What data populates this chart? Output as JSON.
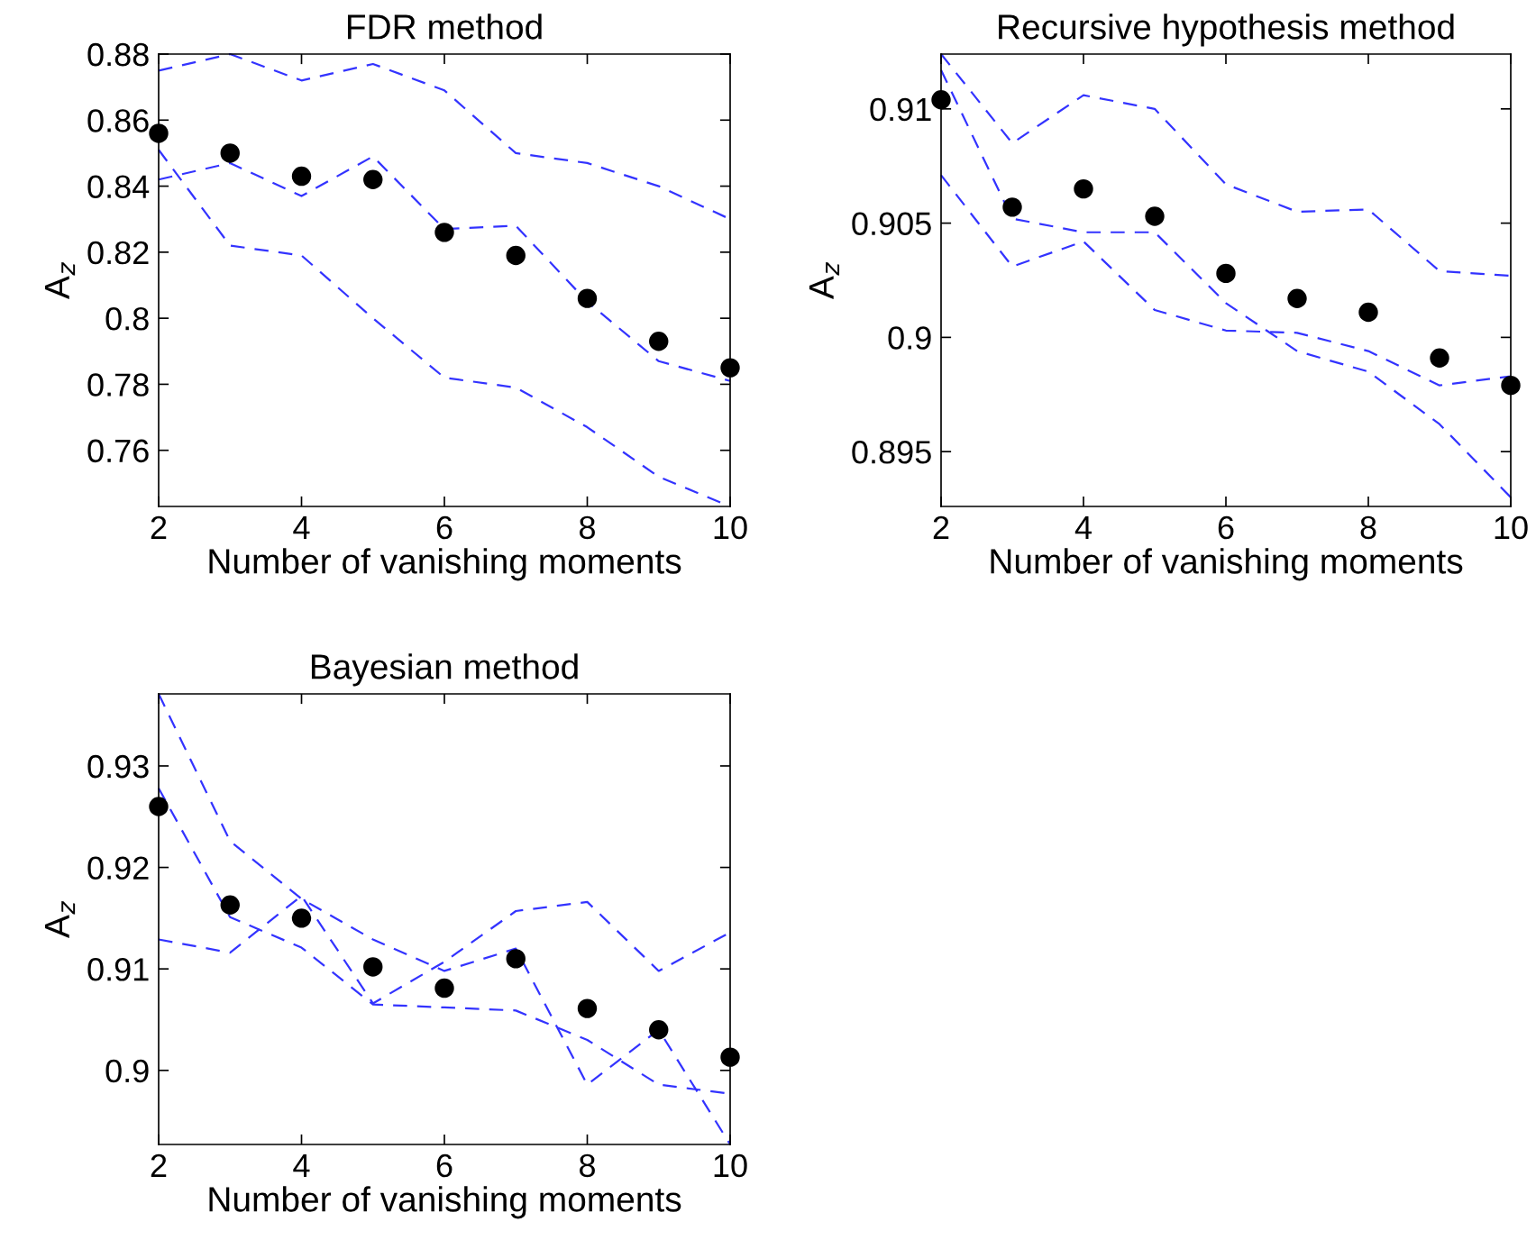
{
  "chart_data": [
    {
      "type": "line",
      "title": "FDR method",
      "xlabel": "Number of vanishing moments",
      "ylabel": "A$_{z}$",
      "x": [
        2,
        3,
        4,
        5,
        6,
        7,
        8,
        9,
        10
      ],
      "xlim": [
        2,
        10
      ],
      "xticks": [
        2,
        4,
        6,
        8,
        10
      ],
      "ylim": [
        0.743,
        0.88
      ],
      "yticks": [
        0.76,
        0.78,
        0.8,
        0.82,
        0.84,
        0.86,
        0.88
      ],
      "grid": false,
      "legend": false,
      "series": [
        {
          "color": "#3333ff",
          "line_style": "dashed",
          "marker": "none",
          "values": [
            0.875,
            0.88,
            0.872,
            0.877,
            0.869,
            0.85,
            0.847,
            0.84,
            0.83
          ]
        },
        {
          "color": "#3333ff",
          "line_style": "dashed",
          "marker": "none",
          "values": [
            0.842,
            0.847,
            0.837,
            0.849,
            0.827,
            0.828,
            0.805,
            0.787,
            0.781
          ]
        },
        {
          "color": "#3333ff",
          "line_style": "dashed",
          "marker": "none",
          "values": [
            0.851,
            0.822,
            0.819,
            0.8,
            0.782,
            0.779,
            0.767,
            0.752,
            0.743
          ]
        },
        {
          "type": "scatter",
          "color": "#000000",
          "marker": "circle",
          "values": [
            0.856,
            0.85,
            0.843,
            0.842,
            0.826,
            0.819,
            0.806,
            0.793,
            0.785
          ]
        }
      ]
    },
    {
      "type": "line",
      "title": "Recursive hypothesis method",
      "xlabel": "Number of vanishing moments",
      "ylabel": "A$_{z}$",
      "x": [
        2,
        3,
        4,
        5,
        6,
        7,
        8,
        9,
        10
      ],
      "xlim": [
        2,
        10
      ],
      "xticks": [
        2,
        4,
        6,
        8,
        10
      ],
      "ylim": [
        0.8926,
        0.9124
      ],
      "yticks": [
        0.895,
        0.9,
        0.905,
        0.91
      ],
      "grid": false,
      "legend": false,
      "series": [
        {
          "color": "#3333ff",
          "line_style": "dashed",
          "marker": "none",
          "values": [
            0.9124,
            0.9085,
            0.9106,
            0.91,
            0.9067,
            0.9055,
            0.9056,
            0.9029,
            0.9027
          ]
        },
        {
          "color": "#3333ff",
          "line_style": "dashed",
          "marker": "none",
          "values": [
            0.9117,
            0.9052,
            0.9046,
            0.9046,
            0.9015,
            0.8994,
            0.8985,
            0.8962,
            0.893
          ]
        },
        {
          "color": "#3333ff",
          "line_style": "dashed",
          "marker": "none",
          "values": [
            0.9071,
            0.9031,
            0.9042,
            0.9012,
            0.9003,
            0.9002,
            0.8994,
            0.8979,
            0.8983
          ]
        },
        {
          "type": "scatter",
          "color": "#000000",
          "marker": "circle",
          "values": [
            0.9104,
            0.9057,
            0.9065,
            0.9053,
            0.9028,
            0.9017,
            0.9011,
            0.8991,
            0.8979
          ]
        }
      ]
    },
    {
      "type": "line",
      "title": "Bayesian method",
      "xlabel": "Number of vanishing moments",
      "ylabel": "A$_{z}$",
      "x": [
        2,
        3,
        4,
        5,
        6,
        7,
        8,
        9,
        10
      ],
      "xlim": [
        2,
        10
      ],
      "xticks": [
        2,
        4,
        6,
        8,
        10
      ],
      "ylim": [
        0.8927,
        0.9371
      ],
      "yticks": [
        0.9,
        0.91,
        0.92,
        0.93
      ],
      "grid": false,
      "legend": false,
      "series": [
        {
          "color": "#3333ff",
          "line_style": "dashed",
          "marker": "none",
          "values": [
            0.9371,
            0.9226,
            0.9169,
            0.9129,
            0.9098,
            0.912,
            0.8986,
            0.904,
            0.8927
          ]
        },
        {
          "color": "#3333ff",
          "line_style": "dashed",
          "marker": "none",
          "values": [
            0.9278,
            0.9151,
            0.9121,
            0.9065,
            0.9062,
            0.9059,
            0.903,
            0.8986,
            0.8977
          ]
        },
        {
          "color": "#3333ff",
          "line_style": "dashed",
          "marker": "none",
          "values": [
            0.9129,
            0.9116,
            0.9172,
            0.9066,
            0.9107,
            0.9157,
            0.9166,
            0.9098,
            0.9136
          ]
        },
        {
          "type": "scatter",
          "color": "#000000",
          "marker": "circle",
          "values": [
            0.926,
            0.9163,
            0.915,
            0.9102,
            0.9081,
            0.911,
            0.9061,
            0.904,
            0.9013
          ]
        }
      ]
    }
  ]
}
